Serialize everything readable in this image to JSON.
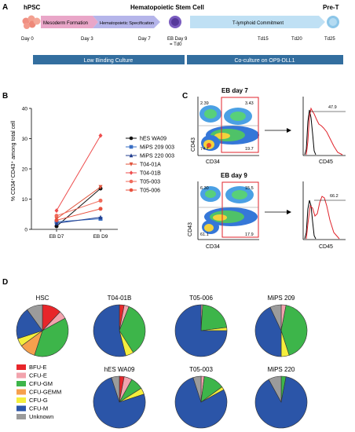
{
  "panelA": {
    "label": "A",
    "hpsc": "hPSC",
    "hsc": "Hematopoietic Stem Cell",
    "pret": "Pre-T",
    "stage1": "Mesoderm Formation",
    "stage2": "Hematopoietic Specification",
    "stage3": "T-lymphoid Commitment",
    "day0": "Day 0",
    "day3": "Day 3",
    "day7": "Day 7",
    "eb_day9_line1": "EB Day 9",
    "eb_day9_line2": "= Td0",
    "td15": "Td15",
    "td20": "Td20",
    "td25": "Td25",
    "culture1": "Low Binding Culture",
    "culture2": "Co-culture on OP9-DLL1",
    "colors": {
      "pink": "#e9a6c8",
      "lavender": "#b5b5ea",
      "purple": "#6e4fb0",
      "lightblue": "#bfe0f4",
      "bar": "#336e9f"
    }
  },
  "panelB": {
    "label": "B",
    "ylabel": "% CD34⁺CD43⁺ among total cell",
    "chart_data": {
      "type": "line",
      "categories": [
        "EB D7",
        "EB D9"
      ],
      "ylim": [
        0,
        40
      ],
      "yticks": [
        "0",
        "10",
        "20",
        "30",
        "40"
      ],
      "series": [
        {
          "name": "hES WA09",
          "values": [
            1.0,
            13.5
          ],
          "color": "#111111",
          "marker": "circle"
        },
        {
          "name": "MiPS 209 003",
          "values": [
            2.5,
            3.5
          ],
          "color": "#3a6fc4",
          "marker": "square"
        },
        {
          "name": "MiPS 220 003",
          "values": [
            2.0,
            4.0
          ],
          "color": "#223f8f",
          "marker": "triangle"
        },
        {
          "name": "T04-01A",
          "values": [
            3.5,
            14.0
          ],
          "color": "#e0523a",
          "marker": "triangle-down"
        },
        {
          "name": "T04-01B",
          "values": [
            6.2,
            31.0
          ],
          "color": "#ee4d4d",
          "marker": "diamond"
        },
        {
          "name": "T05-003",
          "values": [
            4.5,
            9.5
          ],
          "color": "#f06a5a",
          "marker": "circle"
        },
        {
          "name": "T05-006",
          "values": [
            3.0,
            6.8
          ],
          "color": "#e8503d",
          "marker": "circle"
        }
      ]
    }
  },
  "panelC": {
    "label": "C",
    "eb7_title": "EB day 7",
    "eb9_title": "EB day 9",
    "xlabel": "CD34",
    "ylabel": "CD43",
    "hist_xlabel": "CD45",
    "eb7_quadrants": [
      "2.39",
      "3.43",
      "74.7",
      "19.7"
    ],
    "eb7_hist_value": "47.9",
    "eb9_quadrants": [
      "6.30",
      "15.5",
      "61.1",
      "17.9"
    ],
    "eb9_hist_value": "66.2"
  },
  "panelD": {
    "label": "D",
    "legend": [
      {
        "name": "BFU-E",
        "color": "#e8262a"
      },
      {
        "name": "CFU-E",
        "color": "#f2a3ad"
      },
      {
        "name": "CFU-GM",
        "color": "#3db54a"
      },
      {
        "name": "CFU-GEMM",
        "color": "#f6a04d"
      },
      {
        "name": "CFU-G",
        "color": "#f4ee3c"
      },
      {
        "name": "CFU-M",
        "color": "#2b55a8"
      },
      {
        "name": "Unknown",
        "color": "#9b9b9b"
      }
    ],
    "chart_data": {
      "type": "pie",
      "categories": [
        "BFU-E",
        "CFU-E",
        "CFU-GM",
        "CFU-GEMM",
        "CFU-G",
        "CFU-M",
        "Unknown"
      ],
      "pies": [
        {
          "title": "HSC",
          "values": [
            12,
            5,
            38,
            10,
            5,
            20,
            10
          ]
        },
        {
          "title": "T04-01B",
          "values": [
            3,
            3,
            35,
            0,
            5,
            54,
            0
          ]
        },
        {
          "title": "T05-006",
          "values": [
            0,
            1,
            22,
            0,
            2,
            75,
            0
          ]
        },
        {
          "title": "MiPS 209",
          "values": [
            0,
            3,
            42,
            0,
            5,
            43,
            7
          ]
        },
        {
          "title": "hES WA09",
          "values": [
            3,
            5,
            8,
            0,
            4,
            75,
            5
          ]
        },
        {
          "title": "T05-003",
          "values": [
            0,
            2,
            13,
            0,
            2,
            78,
            5
          ]
        },
        {
          "title": "MiPS 220",
          "values": [
            0,
            0,
            3,
            0,
            0,
            89,
            8
          ]
        }
      ]
    }
  }
}
